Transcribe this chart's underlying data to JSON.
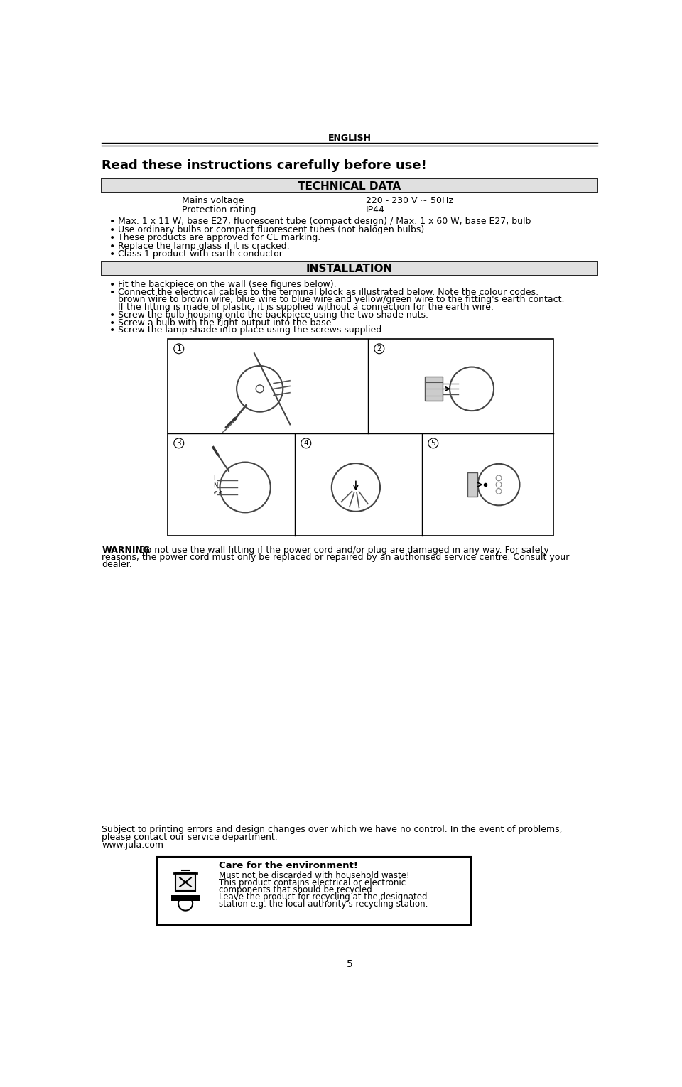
{
  "page_title": "ENGLISH",
  "read_instructions": "Read these instructions carefully before use!",
  "technical_data_header": "TECHNICAL DATA",
  "tech_data": [
    [
      "Mains voltage",
      "220 - 230 V ~ 50Hz"
    ],
    [
      "Protection rating",
      "IP44"
    ]
  ],
  "bullet_points_tech": [
    "Max. 1 x 11 W, base E27, fluorescent tube (compact design) / Max. 1 x 60 W, base E27, bulb",
    "Use ordinary bulbs or compact fluorescent tubes (not halogen bulbs).",
    "These products are approved for CE marking.",
    "Replace the lamp glass if it is cracked.",
    "Class 1 product with earth conductor."
  ],
  "installation_header": "INSTALLATION",
  "bullet_points_install": [
    [
      "Fit the backpiece on the wall (see figures below)."
    ],
    [
      "Connect the electrical cables to the terminal block as illustrated below. Note the colour codes:",
      "brown wire to brown wire, blue wire to blue wire and yellow/green wire to the fitting's earth contact.",
      "If the fitting is made of plastic, it is supplied without a connection for the earth wire."
    ],
    [
      "Screw the bulb housing onto the backpiece using the two shade nuts."
    ],
    [
      "Screw a bulb with the right output into the base."
    ],
    [
      "Screw the lamp shade into place using the screws supplied."
    ]
  ],
  "warning_lines": [
    "WARNING  Do not use the wall fitting if the power cord and/or plug are damaged in any way. For safety",
    "reasons, the power cord must only be replaced or repaired by an authorised service centre. Consult your",
    "dealer."
  ],
  "footer_lines": [
    "Subject to printing errors and design changes over which we have no control. In the event of problems,",
    "please contact our service department.",
    "www.jula.com"
  ],
  "care_header": "Care for the environment!",
  "care_text_lines": [
    "Must not be discarded with household waste!",
    "This product contains electrical or electronic",
    "components that should be recycled.",
    "Leave the product for recycling at the designated",
    "station e.g. the local authority's recycling station."
  ],
  "page_number": "5",
  "bg_color": "#ffffff",
  "text_color": "#000000",
  "header_bg": "#e0e0e0",
  "border_color": "#000000"
}
